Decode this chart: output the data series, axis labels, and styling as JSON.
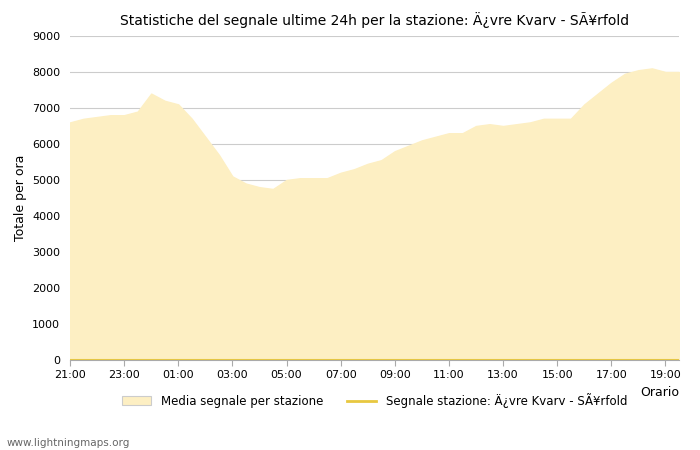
{
  "title": "Statistiche del segnale ultime 24h per la stazione: Ä¿vre Kvarv - SÃ¥rfold",
  "xlabel": "Orario",
  "ylabel": "Totale per ora",
  "xlim": [
    0,
    22.5
  ],
  "ylim": [
    0,
    9000
  ],
  "yticks": [
    0,
    1000,
    2000,
    3000,
    4000,
    5000,
    6000,
    7000,
    8000,
    9000
  ],
  "xtick_labels": [
    "21:00",
    "23:00",
    "01:00",
    "03:00",
    "05:00",
    "07:00",
    "09:00",
    "11:00",
    "13:00",
    "15:00",
    "17:00",
    "19:00"
  ],
  "fill_color": "#FDEFC3",
  "fill_alpha": 1.0,
  "line_color": "#E8C840",
  "line_width": 1.5,
  "bg_color": "#ffffff",
  "grid_color": "#cccccc",
  "watermark": "www.lightningmaps.org",
  "legend_fill_label": "Media segnale per stazione",
  "legend_line_label": "Segnale stazione: Ä¿vre Kvarv - SÃ¥rfold",
  "x_values": [
    0,
    0.5,
    1,
    1.5,
    2,
    2.5,
    3,
    3.5,
    4,
    4.5,
    5,
    5.5,
    6,
    6.5,
    7,
    7.5,
    8,
    8.5,
    9,
    9.5,
    10,
    10.5,
    11,
    11.5,
    12,
    12.5,
    13,
    13.5,
    14,
    14.5,
    15,
    15.5,
    16,
    16.5,
    17,
    17.5,
    18,
    18.5,
    19,
    19.5,
    20,
    20.5,
    21,
    21.5,
    22,
    22.5
  ],
  "y_fill": [
    6600,
    6700,
    6750,
    6800,
    6800,
    6900,
    7400,
    7200,
    7100,
    6700,
    6200,
    5700,
    5100,
    4900,
    4800,
    4750,
    5000,
    5050,
    5050,
    5050,
    5200,
    5300,
    5450,
    5550,
    5800,
    5950,
    6100,
    6200,
    6300,
    6300,
    6500,
    6550,
    6500,
    6550,
    6600,
    6700,
    6700,
    6700,
    7100,
    7400,
    7700,
    7950,
    8050,
    8100,
    8000,
    8000
  ],
  "y_line": [
    10,
    10,
    10,
    10,
    10,
    10,
    10,
    10,
    10,
    10,
    10,
    10,
    10,
    10,
    10,
    10,
    10,
    10,
    10,
    10,
    10,
    10,
    10,
    10,
    10,
    10,
    10,
    10,
    10,
    10,
    10,
    10,
    10,
    10,
    10,
    10,
    10,
    10,
    10,
    10,
    10,
    10,
    10,
    10,
    10,
    10
  ]
}
